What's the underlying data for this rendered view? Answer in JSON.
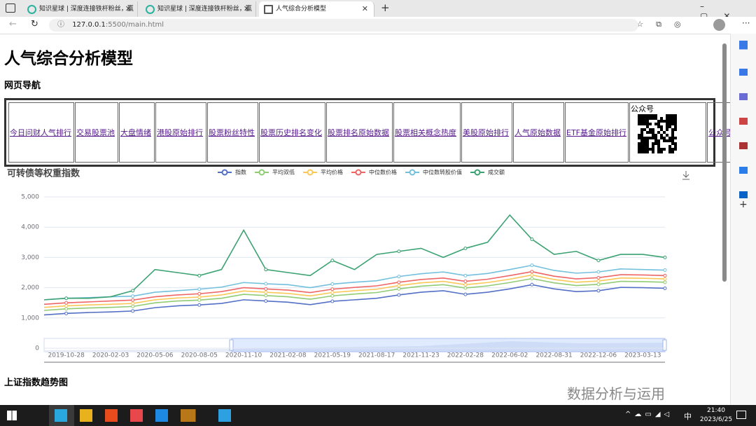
{
  "browser": {
    "tabs": [
      "知识星球 | 深度连接铁杆粉丝，赢",
      "知识星球 | 深度连接铁杆粉丝，赢",
      "人气综合分析模型"
    ],
    "address": {
      "host": "127.0.0.1",
      "port": ":5500",
      "path": "/main.html"
    }
  },
  "page": {
    "title": "人气综合分析模型",
    "nav_heading": "网页导航",
    "nav_links": [
      "今日问财人气排行",
      "交易股票池",
      "大盘情绪",
      "港股原始排行",
      "股票粉丝特性",
      "股票历史排名变化",
      "股票排名原始数据",
      "股票相关概念热度",
      "美股原始排行",
      "人气原始数据",
      "ETF基金原始排行"
    ],
    "qr_caption": "公众号",
    "last_link": "公众号链接",
    "section_heading": "上证指数趋势图"
  },
  "chart_data": {
    "type": "line",
    "title": "可转债等权重指数",
    "categories": [
      null,
      "2019-10-28",
      null,
      "2020-02-03",
      null,
      "2020-05-06",
      null,
      "2020-08-05",
      null,
      "2020-11-10",
      null,
      "2021-02-08",
      null,
      "2021-05-19",
      null,
      "2021-08-17",
      null,
      "2021-11-23",
      null,
      "2022-02-28",
      null,
      "2022-06-02",
      null,
      "2022-08-31",
      null,
      "2022-12-06",
      null,
      "2023-03-13",
      null
    ],
    "series": [
      {
        "name": "指数",
        "color": "#5470c6",
        "values": [
          1100,
          1150,
          1180,
          1200,
          1230,
          1340,
          1400,
          1430,
          1480,
          1600,
          1560,
          1520,
          1440,
          1550,
          1600,
          1650,
          1760,
          1850,
          1900,
          1780,
          1850,
          1960,
          2100,
          1960,
          1870,
          1900,
          2010,
          2000,
          1980
        ]
      },
      {
        "name": "平均双低",
        "color": "#91cc75",
        "values": [
          1250,
          1300,
          1330,
          1350,
          1380,
          1500,
          1560,
          1590,
          1650,
          1780,
          1740,
          1700,
          1620,
          1730,
          1790,
          1840,
          1960,
          2050,
          2100,
          1990,
          2060,
          2170,
          2300,
          2160,
          2070,
          2110,
          2210,
          2200,
          2180
        ]
      },
      {
        "name": "平均价格",
        "color": "#fac858",
        "values": [
          1350,
          1400,
          1430,
          1450,
          1480,
          1600,
          1660,
          1690,
          1760,
          1890,
          1850,
          1810,
          1730,
          1840,
          1900,
          1950,
          2070,
          2160,
          2210,
          2100,
          2170,
          2280,
          2420,
          2270,
          2180,
          2220,
          2320,
          2310,
          2290
        ]
      },
      {
        "name": "中位数价格",
        "color": "#ee6666",
        "values": [
          1450,
          1500,
          1530,
          1560,
          1590,
          1700,
          1760,
          1800,
          1870,
          2000,
          1960,
          1920,
          1840,
          1950,
          2010,
          2060,
          2180,
          2270,
          2320,
          2210,
          2280,
          2400,
          2530,
          2380,
          2290,
          2330,
          2430,
          2420,
          2400
        ]
      },
      {
        "name": "中位数转股价值",
        "color": "#73c0de",
        "values": [
          1600,
          1650,
          1670,
          1700,
          1720,
          1850,
          1900,
          1950,
          2020,
          2170,
          2130,
          2100,
          2000,
          2120,
          2180,
          2230,
          2370,
          2460,
          2520,
          2400,
          2470,
          2600,
          2740,
          2570,
          2480,
          2520,
          2620,
          2600,
          2580
        ]
      },
      {
        "name": "成交额",
        "color": "#3ba272",
        "values": [
          1600,
          1650,
          1650,
          1700,
          1900,
          2600,
          2500,
          2400,
          2600,
          3900,
          2600,
          2500,
          2400,
          2900,
          2600,
          3100,
          3200,
          3300,
          3000,
          3300,
          3500,
          4400,
          3600,
          3100,
          3200,
          2900,
          3100,
          3100,
          3000
        ]
      }
    ],
    "ylim": [
      0,
      5000
    ],
    "yticks": [
      0,
      {
        "value": 1000,
        "label": "1,000"
      },
      {
        "value": 2000,
        "label": "2,000"
      },
      {
        "value": 3000,
        "label": "3,000"
      },
      {
        "value": 4000,
        "label": "4,000"
      },
      {
        "value": 5000,
        "label": "5,000"
      }
    ],
    "grid": true
  },
  "watermark": "数据分析与运用",
  "taskbar": {
    "time": "21:40",
    "date": "2023/6/25",
    "ime": "中"
  }
}
